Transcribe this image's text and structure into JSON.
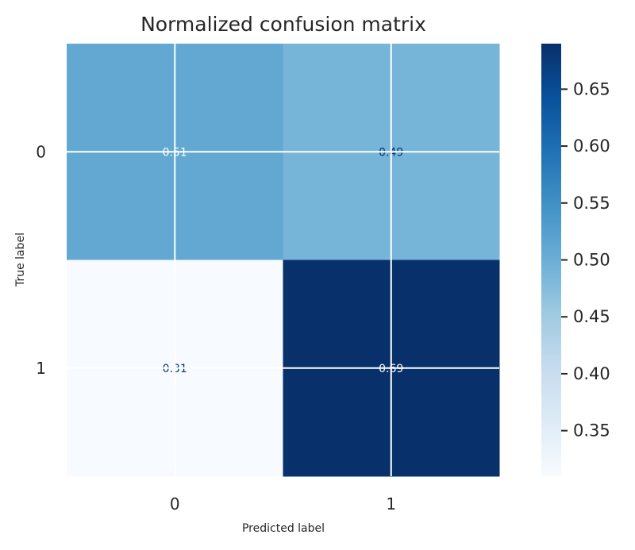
{
  "chart_data": {
    "type": "heatmap",
    "title": "Normalized confusion matrix",
    "xlabel": "Predicted label",
    "ylabel": "True label",
    "x_categories": [
      "0",
      "1"
    ],
    "y_categories": [
      "0",
      "1"
    ],
    "values": [
      [
        0.51,
        0.49
      ],
      [
        0.31,
        0.69
      ]
    ],
    "cell_labels": [
      [
        "0.51",
        "0.49"
      ],
      [
        "0.31",
        "0.69"
      ]
    ],
    "colormap": "Blues",
    "color_low": "#f7fbff",
    "color_high": "#08306b",
    "colorbar": {
      "vmin": 0.31,
      "vmax": 0.69,
      "ticks": [
        0.35,
        0.4,
        0.45,
        0.5,
        0.55,
        0.6,
        0.65
      ],
      "tick_labels": [
        "0.35",
        "0.40",
        "0.45",
        "0.50",
        "0.55",
        "0.60",
        "0.65"
      ]
    },
    "grid": true,
    "grid_color": "#ffffff"
  }
}
